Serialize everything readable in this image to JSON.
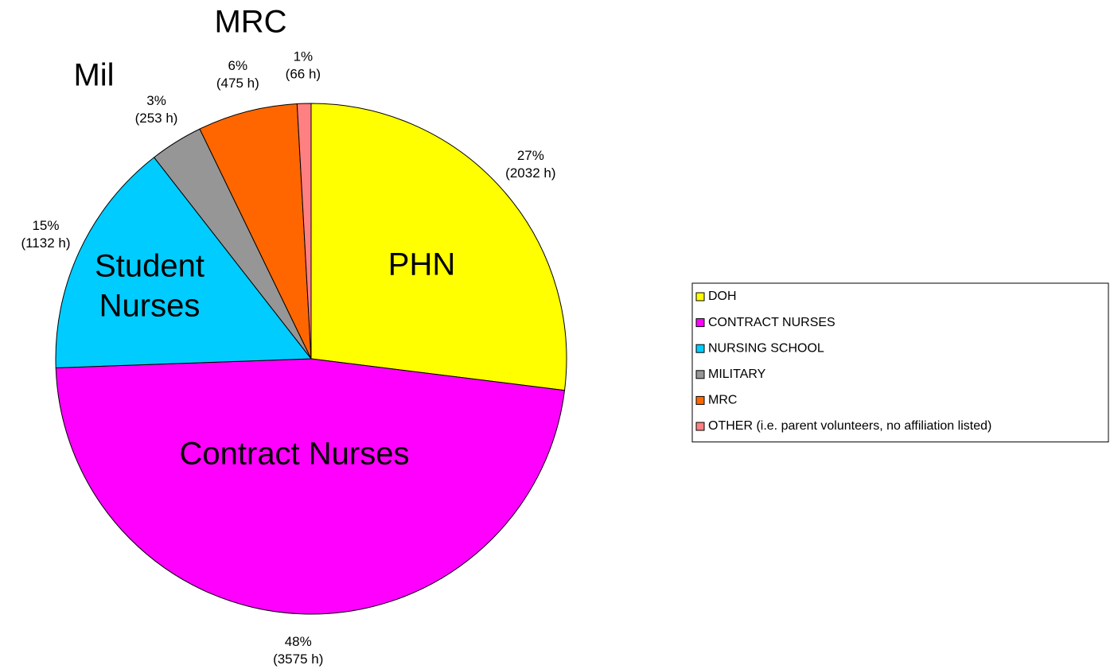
{
  "chart_data": {
    "type": "pie",
    "categories": [
      "DOH",
      "CONTRACT NURSES",
      "NURSING SCHOOL",
      "MILITARY",
      "MRC",
      "OTHER (i.e. parent volunteers, no affiliation listed)"
    ],
    "values": [
      2032,
      3575,
      1132,
      253,
      475,
      66
    ],
    "value_labels": [
      [
        "27%",
        "(2032 h)"
      ],
      [
        "48%",
        "(3575 h)"
      ],
      [
        "15%",
        "(1132 h)"
      ],
      [
        "3%",
        "(253 h)"
      ],
      [
        "6%",
        "(475 h)"
      ],
      [
        "1%",
        "(66 h)"
      ]
    ],
    "colors": [
      "#ffff00",
      "#ff00ff",
      "#00ccff",
      "#969696",
      "#ff6600",
      "#ff8080"
    ],
    "slice_labels": [
      [
        "PHN"
      ],
      [
        "Contract Nurses"
      ],
      [
        "Student",
        "Nurses"
      ],
      [
        "Mil"
      ],
      [
        "MRC"
      ],
      null
    ],
    "legend": "right"
  }
}
